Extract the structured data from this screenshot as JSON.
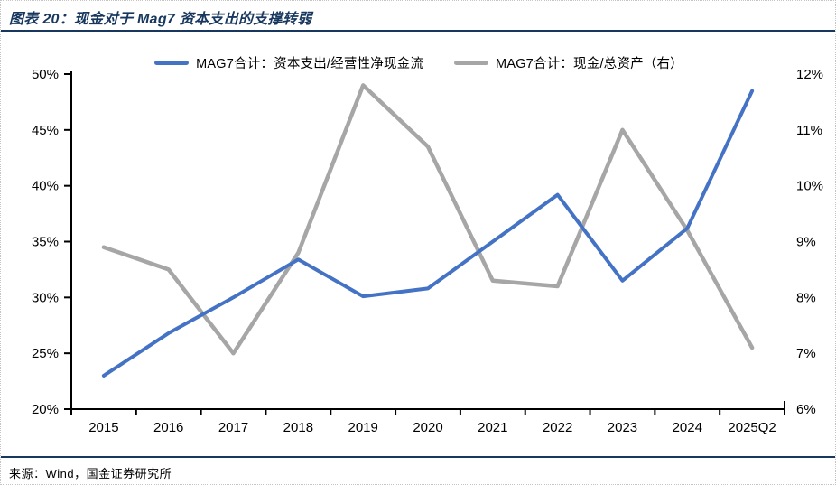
{
  "figure": {
    "title": "图表 20：现金对于 Mag7 资本支出的支撑转弱",
    "source": "来源：Wind，国金证券研究所"
  },
  "colors": {
    "title_navy": "#17375E",
    "rule_navy": "#17375E",
    "axis_black": "#000000",
    "series_blue": "#4472C4",
    "series_gray": "#A6A6A6"
  },
  "legend": [
    {
      "label": "MAG7合计：资本支出/经营性净现金流",
      "color": "#4472C4"
    },
    {
      "label": "MAG7合计：现金/总资产（右）",
      "color": "#A6A6A6"
    }
  ],
  "chart_data": {
    "type": "line",
    "categories": [
      "2015",
      "2016",
      "2017",
      "2018",
      "2019",
      "2020",
      "2021",
      "2022",
      "2023",
      "2024",
      "2025Q2"
    ],
    "series": [
      {
        "name": "MAG7合计：资本支出/经营性净现金流",
        "axis": "left",
        "color": "#4472C4",
        "values": [
          23.0,
          26.8,
          30.0,
          33.4,
          30.1,
          30.8,
          35.0,
          39.2,
          31.5,
          36.2,
          48.5
        ]
      },
      {
        "name": "MAG7合计：现金/总资产（右）",
        "axis": "right",
        "color": "#A6A6A6",
        "values": [
          8.9,
          8.5,
          7.0,
          8.8,
          11.8,
          10.7,
          8.3,
          8.2,
          11.0,
          9.2,
          7.1
        ]
      }
    ],
    "left_axis": {
      "min": 20,
      "max": 50,
      "step": 5,
      "ticks": [
        "20%",
        "25%",
        "30%",
        "35%",
        "40%",
        "45%",
        "50%"
      ]
    },
    "right_axis": {
      "min": 6,
      "max": 12,
      "step": 1,
      "ticks": [
        "6%",
        "7%",
        "8%",
        "9%",
        "10%",
        "11%",
        "12%"
      ]
    },
    "grid": false,
    "legend_position": "top",
    "title": "现金对于 Mag7 资本支出的支撑转弱",
    "xlabel": "",
    "ylabel_left": "资本支出/经营性净现金流",
    "ylabel_right": "现金/总资产"
  }
}
